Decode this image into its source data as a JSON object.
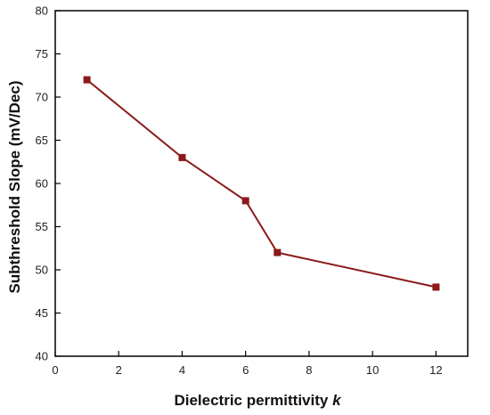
{
  "chart_data": {
    "type": "line",
    "title": "",
    "xlabel": "Dielectric permittivity ",
    "xlabel_symbol": "k",
    "ylabel": "Subthreshold Slope (mV/Dec)",
    "xlim": [
      0,
      13
    ],
    "ylim": [
      40,
      80
    ],
    "xticks": [
      0,
      2,
      4,
      6,
      8,
      10,
      12
    ],
    "yticks": [
      40,
      45,
      50,
      55,
      60,
      65,
      70,
      75,
      80
    ],
    "grid": false,
    "legend": "none",
    "series": [
      {
        "marker": "square",
        "color": "#8b1a1a",
        "x": [
          1,
          4,
          6,
          7,
          12
        ],
        "y": [
          72,
          63,
          58,
          52,
          48
        ]
      }
    ]
  }
}
